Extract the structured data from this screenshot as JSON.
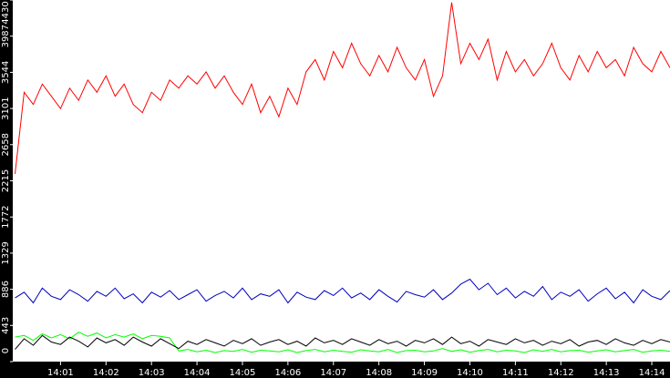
{
  "chart_data": {
    "type": "line",
    "x": [
      0,
      0.2,
      0.4,
      0.6,
      0.8,
      1,
      1.2,
      1.4,
      1.6,
      1.8,
      2,
      2.2,
      2.4,
      2.6,
      2.8,
      3,
      3.2,
      3.4,
      3.6,
      3.8,
      4,
      4.2,
      4.4,
      4.6,
      4.8,
      5,
      5.2,
      5.4,
      5.6,
      5.8,
      6,
      6.2,
      6.4,
      6.6,
      6.8,
      7,
      7.2,
      7.4,
      7.6,
      7.8,
      8,
      8.2,
      8.4,
      8.6,
      8.8,
      9,
      9.2,
      9.4,
      9.6,
      9.8,
      10,
      10.2,
      10.4,
      10.6,
      10.8,
      11,
      11.2,
      11.4,
      11.6,
      11.8,
      12,
      12.2,
      12.4,
      12.6,
      12.8,
      13,
      13.2,
      13.4,
      13.6,
      13.8,
      14,
      14.2,
      14.4
    ],
    "series": [
      {
        "color": "#ff0000",
        "values": [
          2300,
          3300,
          3150,
          3400,
          3250,
          3100,
          3350,
          3200,
          3450,
          3300,
          3500,
          3250,
          3400,
          3150,
          3050,
          3300,
          3200,
          3450,
          3350,
          3500,
          3400,
          3550,
          3350,
          3500,
          3300,
          3150,
          3400,
          3050,
          3250,
          3000,
          3350,
          3150,
          3550,
          3700,
          3450,
          3800,
          3600,
          3900,
          3650,
          3500,
          3750,
          3550,
          3850,
          3600,
          3450,
          3700,
          3250,
          3500,
          4400,
          3650,
          3900,
          3700,
          3950,
          3450,
          3800,
          3550,
          3700,
          3500,
          3650,
          3900,
          3600,
          3450,
          3750,
          3550,
          3800,
          3600,
          3700,
          3500,
          3850,
          3650,
          3550,
          3800,
          3600
        ]
      },
      {
        "color": "#0000c0",
        "values": [
          780,
          850,
          720,
          900,
          800,
          760,
          880,
          820,
          740,
          860,
          800,
          900,
          770,
          830,
          720,
          850,
          790,
          870,
          760,
          820,
          880,
          740,
          810,
          860,
          780,
          900,
          760,
          830,
          800,
          880,
          720,
          850,
          790,
          760,
          870,
          810,
          900,
          780,
          840,
          760,
          880,
          800,
          730,
          860,
          820,
          790,
          880,
          760,
          840,
          950,
          1010,
          880,
          960,
          820,
          900,
          780,
          860,
          800,
          920,
          760,
          850,
          800,
          880,
          740,
          830,
          900,
          770,
          850,
          720,
          880,
          800,
          760,
          870
        ]
      },
      {
        "color": "#00ff00",
        "values": [
          300,
          320,
          260,
          340,
          290,
          330,
          280,
          360,
          310,
          350,
          290,
          330,
          300,
          340,
          280,
          320,
          310,
          290,
          130,
          150,
          120,
          140,
          110,
          135,
          125,
          150,
          115,
          140,
          130,
          120,
          145,
          110,
          135,
          150,
          120,
          140,
          125,
          115,
          145,
          130,
          120,
          150,
          110,
          135,
          140,
          120,
          130,
          160,
          125,
          145,
          115,
          135,
          150,
          120,
          140,
          130,
          110,
          145,
          125,
          150,
          120,
          135,
          140,
          115,
          130,
          145,
          120,
          135,
          150,
          115,
          130,
          140,
          125
        ]
      },
      {
        "color": "#000000",
        "values": [
          150,
          280,
          200,
          320,
          240,
          210,
          300,
          250,
          180,
          290,
          230,
          270,
          200,
          300,
          240,
          190,
          280,
          220,
          160,
          250,
          210,
          270,
          230,
          190,
          260,
          220,
          280,
          200,
          240,
          270,
          210,
          250,
          190,
          290,
          230,
          260,
          210,
          280,
          240,
          200,
          270,
          220,
          250,
          190,
          260,
          230,
          280,
          210,
          300,
          220,
          250,
          190,
          270,
          240,
          210,
          280,
          230,
          260,
          200,
          250,
          220,
          270,
          190,
          240,
          260,
          210,
          280,
          230,
          200,
          260,
          220,
          270,
          240
        ]
      }
    ],
    "xlim": [
      -0.05,
      14.4
    ],
    "xticks": [
      {
        "value": 1,
        "label": "14:01"
      },
      {
        "value": 2,
        "label": "14:02"
      },
      {
        "value": 3,
        "label": "14:03"
      },
      {
        "value": 4,
        "label": "14:04"
      },
      {
        "value": 5,
        "label": "14:05"
      },
      {
        "value": 6,
        "label": "14:06"
      },
      {
        "value": 7,
        "label": "14:07"
      },
      {
        "value": 8,
        "label": "14:08"
      },
      {
        "value": 9,
        "label": "14:09"
      },
      {
        "value": 10,
        "label": "14:10"
      },
      {
        "value": 11,
        "label": "14:11"
      },
      {
        "value": 12,
        "label": "14:12"
      },
      {
        "value": 13,
        "label": "14:13"
      },
      {
        "value": 14,
        "label": "14:14"
      }
    ],
    "ylim": [
      0,
      4430
    ],
    "yticks": [
      0,
      443,
      886,
      1329,
      1772,
      2215,
      2658,
      3101,
      3544,
      3987,
      4430
    ]
  }
}
